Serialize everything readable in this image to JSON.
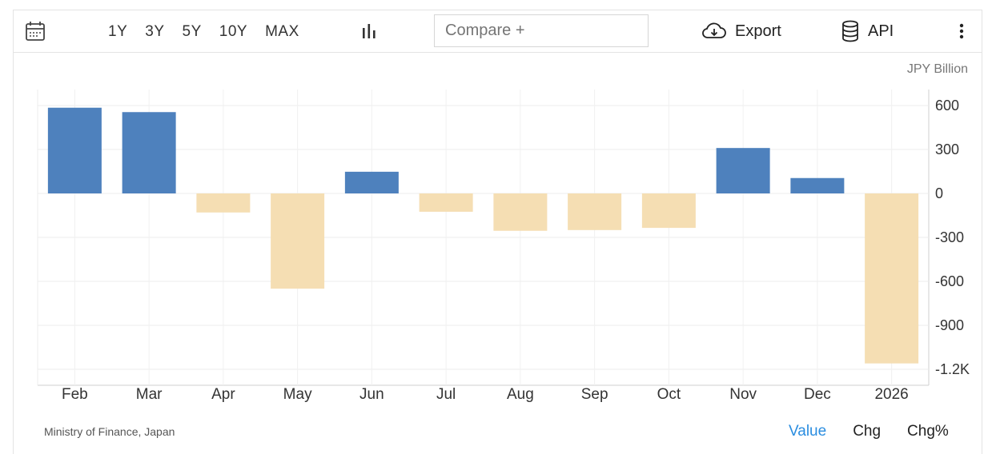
{
  "toolbar": {
    "ranges": [
      "1Y",
      "3Y",
      "5Y",
      "10Y",
      "MAX"
    ],
    "compare_placeholder": "Compare +",
    "export_label": "Export",
    "api_label": "API",
    "icons": [
      "calendar-icon",
      "bar-chart-icon",
      "cloud-download-icon",
      "database-icon",
      "more-vertical-icon"
    ]
  },
  "chart_data": {
    "type": "bar",
    "unit": "JPY Billion",
    "categories": [
      "Feb",
      "Mar",
      "Apr",
      "May",
      "Jun",
      "Jul",
      "Aug",
      "Sep",
      "Oct",
      "Nov",
      "Dec",
      "2026"
    ],
    "values": [
      585,
      555,
      -130,
      -650,
      148,
      -125,
      -255,
      -250,
      -235,
      310,
      105,
      -1160
    ],
    "y_ticks": [
      600,
      300,
      0,
      -300,
      -600,
      -900,
      -1200
    ],
    "y_tick_labels": [
      "600",
      "300",
      "0",
      "-300",
      "-600",
      "-900",
      "-1.2K"
    ],
    "ylim": [
      -1300,
      700
    ],
    "positive_color": "#4e81bd",
    "negative_color": "#f5deb3",
    "grid": true
  },
  "footer": {
    "source": "Ministry of Finance, Japan",
    "modes": [
      "Value",
      "Chg",
      "Chg%"
    ],
    "active_mode": "Value"
  }
}
